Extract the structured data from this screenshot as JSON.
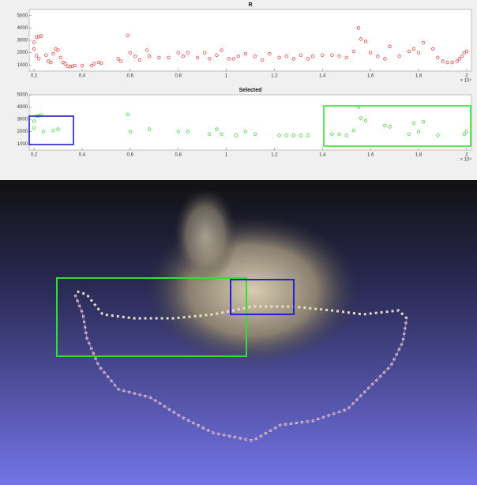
{
  "chart_data": [
    {
      "type": "scatter",
      "title": "R",
      "color": "#e03030",
      "x_multiplier": "× 10⁴",
      "x": [
        0.2,
        0.2,
        0.21,
        0.22,
        0.23,
        0.21,
        0.22,
        0.25,
        0.26,
        0.27,
        0.28,
        0.29,
        0.3,
        0.31,
        0.32,
        0.33,
        0.34,
        0.35,
        0.36,
        0.37,
        0.4,
        0.44,
        0.45,
        0.47,
        0.48,
        0.55,
        0.56,
        0.59,
        0.6,
        0.62,
        0.64,
        0.67,
        0.68,
        0.72,
        0.76,
        0.8,
        0.82,
        0.84,
        0.88,
        0.91,
        0.93,
        0.96,
        0.98,
        1.01,
        1.03,
        1.05,
        1.08,
        1.12,
        1.15,
        1.18,
        1.22,
        1.25,
        1.28,
        1.31,
        1.34,
        1.36,
        1.4,
        1.44,
        1.47,
        1.5,
        1.53,
        1.55,
        1.56,
        1.58,
        1.6,
        1.63,
        1.66,
        1.68,
        1.72,
        1.76,
        1.78,
        1.8,
        1.82,
        1.86,
        1.88,
        1.9,
        1.92,
        1.94,
        1.96,
        1.97,
        1.98,
        1.99,
        2.0
      ],
      "values": [
        2300,
        2850,
        3250,
        3300,
        3350,
        1750,
        1500,
        1800,
        1300,
        1200,
        1900,
        2300,
        2200,
        1600,
        1200,
        1100,
        900,
        850,
        900,
        950,
        950,
        950,
        1100,
        1200,
        1150,
        1500,
        1300,
        3400,
        2000,
        1700,
        1400,
        2200,
        1700,
        1600,
        1600,
        2000,
        1700,
        2000,
        1600,
        2000,
        1500,
        1800,
        2200,
        1500,
        1500,
        1700,
        1900,
        1700,
        1400,
        1900,
        1600,
        1700,
        1500,
        1800,
        1500,
        1700,
        1800,
        1800,
        1700,
        1600,
        2100,
        4000,
        3100,
        2900,
        2000,
        1700,
        1500,
        2500,
        1700,
        2100,
        2300,
        2000,
        2800,
        2300,
        1600,
        1300,
        1200,
        1200,
        1300,
        1500,
        1700,
        2000,
        2100
      ],
      "xlim": [
        0.18,
        2.02
      ],
      "ylim": [
        500,
        5500
      ],
      "xticks": [
        0.2,
        0.4,
        0.6,
        0.8,
        1,
        1.2,
        1.4,
        1.6,
        1.8,
        2
      ],
      "yticks": [
        1000,
        2000,
        3000,
        4000,
        5000
      ]
    },
    {
      "type": "scatter",
      "title": "Selected",
      "color": "#30d030",
      "x_multiplier": "× 10⁴",
      "x": [
        0.2,
        0.2,
        0.21,
        0.22,
        0.23,
        0.24,
        0.28,
        0.3,
        0.59,
        0.6,
        0.68,
        0.8,
        0.84,
        0.93,
        0.96,
        0.98,
        1.04,
        1.08,
        1.12,
        1.22,
        1.25,
        1.28,
        1.31,
        1.34,
        1.44,
        1.47,
        1.5,
        1.53,
        1.55,
        1.56,
        1.58,
        1.66,
        1.68,
        1.76,
        1.78,
        1.8,
        1.82,
        1.88,
        1.99,
        2.0
      ],
      "values": [
        2300,
        2850,
        3250,
        3300,
        3350,
        2000,
        2100,
        2200,
        3400,
        2000,
        2200,
        2000,
        2000,
        1800,
        2200,
        1800,
        1700,
        2000,
        1800,
        1700,
        1700,
        1700,
        1700,
        1700,
        1800,
        1800,
        1700,
        2100,
        4000,
        3100,
        2900,
        2500,
        2400,
        1800,
        2700,
        2000,
        2800,
        1700,
        1800,
        2000
      ],
      "xlim": [
        0.18,
        2.02
      ],
      "ylim": [
        500,
        5000
      ],
      "xticks": [
        0.2,
        0.4,
        0.6,
        0.8,
        1,
        1.2,
        1.4,
        1.6,
        1.8,
        2
      ],
      "yticks": [
        1000,
        2000,
        3000,
        4000,
        5000
      ]
    }
  ]
}
